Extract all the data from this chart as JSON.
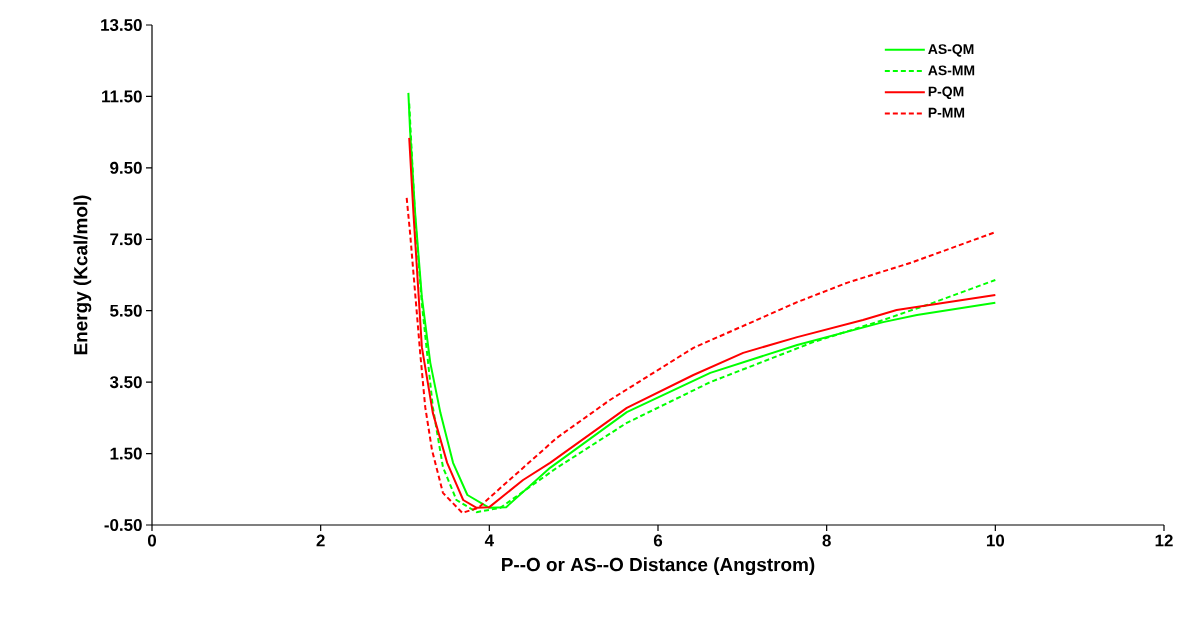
{
  "chart_data": {
    "type": "line",
    "xlabel": "P--O or AS--O Distance (Angstrom)",
    "ylabel": "Energy (Kcal/mol)",
    "xlim": [
      0,
      12
    ],
    "ylim": [
      -0.5,
      13.5
    ],
    "xticks": [
      0,
      2,
      4,
      6,
      8,
      10,
      12
    ],
    "yticks": [
      {
        "value": -0.5,
        "label": "-0.50"
      },
      {
        "value": 1.5,
        "label": "1.50"
      },
      {
        "value": 3.5,
        "label": "3.50"
      },
      {
        "value": 5.5,
        "label": "5.50"
      },
      {
        "value": 7.5,
        "label": "7.50"
      },
      {
        "value": 9.5,
        "label": "9.50"
      },
      {
        "value": 11.5,
        "label": "11.50"
      },
      {
        "value": 13.5,
        "label": "13.50"
      }
    ],
    "legend": "top right",
    "grid": false,
    "series": [
      {
        "name": "AS-QM",
        "color": "#00ff00",
        "line_style": "solid",
        "x": [
          3.04,
          3.06,
          3.12,
          3.2,
          3.3,
          3.42,
          3.57,
          3.74,
          4.0,
          4.2,
          4.72,
          5.63,
          6.62,
          7.65,
          8.67,
          9.07,
          10.0
        ],
        "values": [
          11.6,
          10.56,
          8.24,
          5.88,
          4.04,
          2.64,
          1.24,
          0.34,
          -0.02,
          0.0,
          1.1,
          2.66,
          3.76,
          4.54,
          5.18,
          5.38,
          5.72
        ]
      },
      {
        "name": "AS-MM",
        "color": "#00ff00",
        "line_style": "dashed",
        "x": [
          3.05,
          3.12,
          3.2,
          3.33,
          3.45,
          3.61,
          3.85,
          4.13,
          4.8,
          5.63,
          6.62,
          7.84,
          8.67,
          9.26,
          10.0
        ],
        "values": [
          11.3,
          8.1,
          5.7,
          2.8,
          1.12,
          0.2,
          -0.14,
          -0.02,
          1.1,
          2.36,
          3.5,
          4.62,
          5.24,
          5.72,
          6.36
        ]
      },
      {
        "name": "P-QM",
        "color": "#ff0000",
        "line_style": "solid",
        "x": [
          3.05,
          3.1,
          3.2,
          3.33,
          3.5,
          3.69,
          3.85,
          4.0,
          4.4,
          4.72,
          5.63,
          6.42,
          7.01,
          7.65,
          8.43,
          8.83,
          10.0
        ],
        "values": [
          10.34,
          8.24,
          4.48,
          2.64,
          1.24,
          0.2,
          -0.02,
          0.0,
          0.76,
          1.24,
          2.78,
          3.7,
          4.32,
          4.76,
          5.24,
          5.52,
          5.94
        ]
      },
      {
        "name": "P-MM",
        "color": "#ff0000",
        "line_style": "dashed",
        "x": [
          3.02,
          3.06,
          3.12,
          3.18,
          3.24,
          3.32,
          3.45,
          3.68,
          3.87,
          4.0,
          4.8,
          5.43,
          6.42,
          7.65,
          8.24,
          9.02,
          10.0
        ],
        "values": [
          8.66,
          7.68,
          6.0,
          4.32,
          2.8,
          1.6,
          0.4,
          -0.16,
          -0.02,
          0.26,
          1.94,
          3.0,
          4.46,
          5.74,
          6.28,
          6.86,
          7.7
        ]
      }
    ]
  }
}
